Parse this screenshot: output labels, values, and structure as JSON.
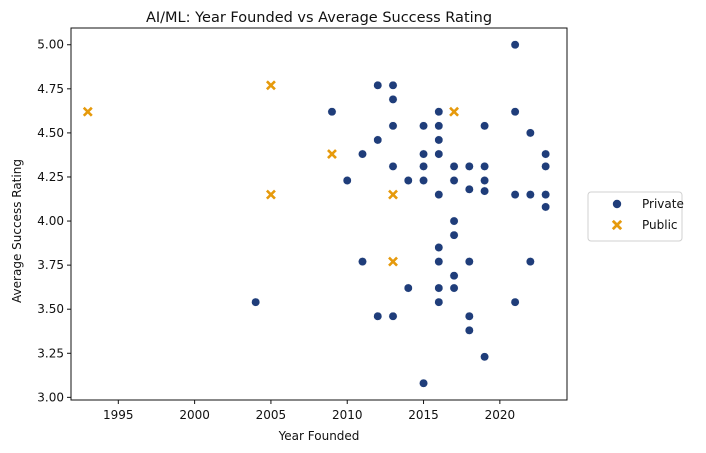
{
  "chart_data": {
    "type": "scatter",
    "title": "AI/ML: Year Founded vs Average Success Rating",
    "xlabel": "Year Founded",
    "ylabel": "Average Success Rating",
    "xlim": [
      1991.9,
      2024.4
    ],
    "ylim": [
      2.985,
      5.095
    ],
    "x_ticks": [
      1995,
      2000,
      2005,
      2010,
      2015,
      2020
    ],
    "y_ticks": [
      3.0,
      3.25,
      3.5,
      3.75,
      4.0,
      4.25,
      4.5,
      4.75,
      5.0
    ],
    "y_tick_labels": [
      "3.00",
      "3.25",
      "3.50",
      "3.75",
      "4.00",
      "4.25",
      "4.50",
      "4.75",
      "5.00"
    ],
    "grid": false,
    "legend": {
      "placement": "outside-right",
      "entries": [
        "Private",
        "Public"
      ]
    },
    "series": [
      {
        "name": "Private",
        "marker": "circle",
        "color": "#1f3d7a",
        "points": [
          [
            2004,
            3.54
          ],
          [
            2009,
            4.62
          ],
          [
            2010,
            4.23
          ],
          [
            2011,
            4.38
          ],
          [
            2011,
            3.77
          ],
          [
            2012,
            4.77
          ],
          [
            2012,
            4.46
          ],
          [
            2012,
            3.46
          ],
          [
            2013,
            4.77
          ],
          [
            2013,
            4.69
          ],
          [
            2013,
            4.54
          ],
          [
            2013,
            4.31
          ],
          [
            2013,
            3.46
          ],
          [
            2014,
            4.23
          ],
          [
            2014,
            3.62
          ],
          [
            2015,
            4.54
          ],
          [
            2015,
            4.38
          ],
          [
            2015,
            4.31
          ],
          [
            2015,
            4.23
          ],
          [
            2015,
            3.08
          ],
          [
            2016,
            4.62
          ],
          [
            2016,
            4.54
          ],
          [
            2016,
            4.46
          ],
          [
            2016,
            4.38
          ],
          [
            2016,
            4.15
          ],
          [
            2016,
            3.85
          ],
          [
            2016,
            3.77
          ],
          [
            2016,
            3.62
          ],
          [
            2016,
            3.54
          ],
          [
            2017,
            4.31
          ],
          [
            2017,
            4.23
          ],
          [
            2017,
            4.0
          ],
          [
            2017,
            3.92
          ],
          [
            2017,
            3.69
          ],
          [
            2017,
            3.62
          ],
          [
            2018,
            4.31
          ],
          [
            2018,
            4.18
          ],
          [
            2018,
            3.77
          ],
          [
            2018,
            3.46
          ],
          [
            2018,
            3.38
          ],
          [
            2019,
            4.54
          ],
          [
            2019,
            4.31
          ],
          [
            2019,
            4.23
          ],
          [
            2019,
            4.17
          ],
          [
            2019,
            3.23
          ],
          [
            2021,
            5.0
          ],
          [
            2021,
            4.62
          ],
          [
            2021,
            4.15
          ],
          [
            2021,
            3.54
          ],
          [
            2022,
            4.5
          ],
          [
            2022,
            4.15
          ],
          [
            2022,
            3.77
          ],
          [
            2023,
            4.38
          ],
          [
            2023,
            4.31
          ],
          [
            2023,
            4.15
          ],
          [
            2023,
            4.08
          ]
        ]
      },
      {
        "name": "Public",
        "marker": "x",
        "color": "#e69a0c",
        "points": [
          [
            1993,
            4.62
          ],
          [
            2005,
            4.77
          ],
          [
            2005,
            4.15
          ],
          [
            2009,
            4.38
          ],
          [
            2013,
            4.15
          ],
          [
            2013,
            3.77
          ],
          [
            2017,
            4.62
          ]
        ]
      }
    ]
  }
}
